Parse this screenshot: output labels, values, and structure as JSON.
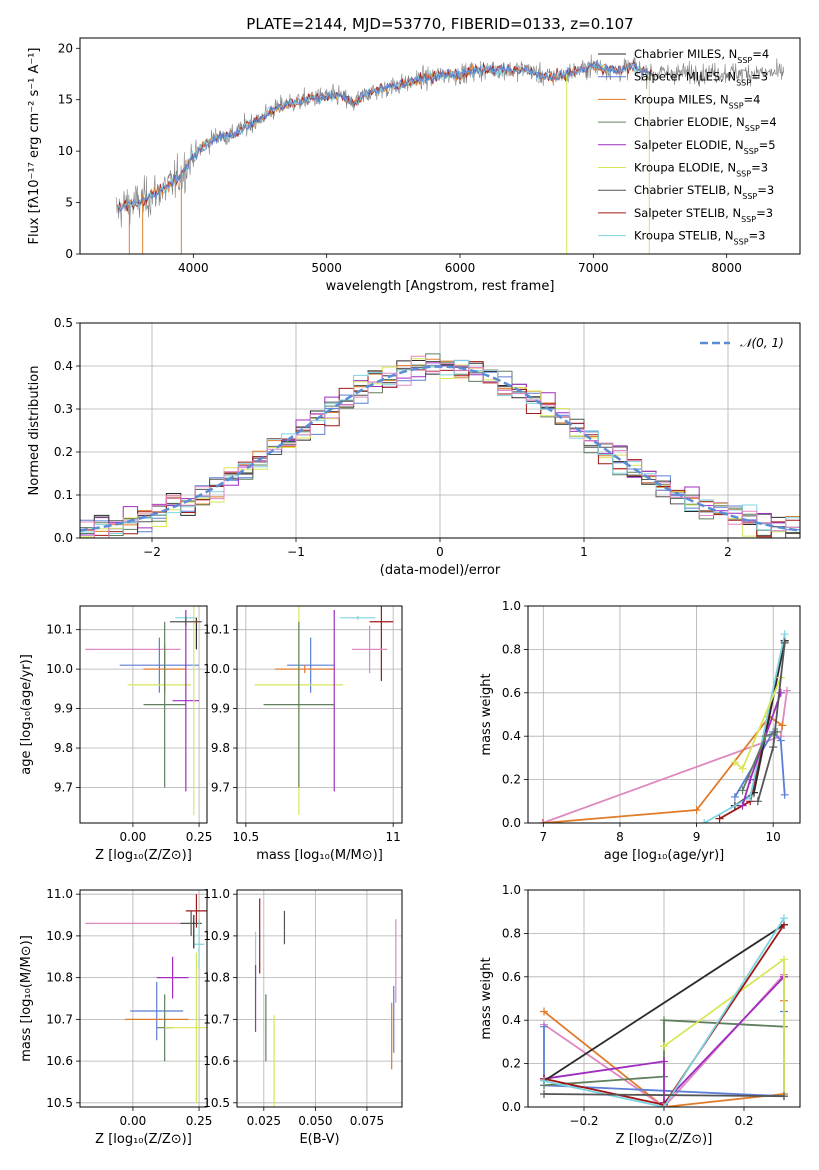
{
  "figure": {
    "title": "PLATE=2144, MJD=53770, FIBERID=0133, z=0.107"
  },
  "colors": {
    "Chabrier MILES": "#5b7fd6",
    "Salpeter MILES": "#2b2b2b",
    "Kroupa MILES": "#e07b2a",
    "Chabrier ELODIE": "#5f7f5f",
    "Salpeter ELODIE": "#a02cc0",
    "Kroupa ELODIE": "#d9e65a",
    "Chabrier STELIB": "#555555",
    "Salpeter STELIB": "#a01818",
    "Kroupa STELIB": "#7fd4e0",
    "pink": "#e088c0",
    "normal": "#5b8dd6",
    "grid": "#b0b0b0"
  },
  "chart_data": [
    {
      "id": "spectrum",
      "type": "line",
      "xlabel": "wavelength [Angstrom, rest frame]",
      "ylabel": "Flux [fλ10⁻¹⁷ erg cm⁻² s⁻¹ A⁻¹]",
      "xlim": [
        3150,
        8550
      ],
      "ylim": [
        0,
        21
      ],
      "xticks": [
        4000,
        5000,
        6000,
        7000,
        8000
      ],
      "yticks": [
        0,
        5,
        10,
        15,
        20
      ],
      "grid": false,
      "legend_position": "top-right",
      "legend": [
        {
          "label": "Chabrier MILES, N",
          "sub": "SSP",
          "suffix": "=4",
          "color_key": "Salpeter MILES"
        },
        {
          "label": "Salpeter MILES, N",
          "sub": "SSP",
          "suffix": "=3",
          "color_key": "Chabrier MILES"
        },
        {
          "label": "Kroupa MILES, N",
          "sub": "SSP",
          "suffix": "=4",
          "color_key": "Kroupa MILES"
        },
        {
          "label": "Chabrier ELODIE, N",
          "sub": "SSP",
          "suffix": "=4",
          "color_key": "Chabrier ELODIE"
        },
        {
          "label": "Salpeter ELODIE, N",
          "sub": "SSP",
          "suffix": "=5",
          "color_key": "Salpeter ELODIE"
        },
        {
          "label": "Kroupa ELODIE, N",
          "sub": "SSP",
          "suffix": "=3",
          "color_key": "Kroupa ELODIE"
        },
        {
          "label": "Chabrier STELIB, N",
          "sub": "SSP",
          "suffix": "=3",
          "color_key": "Chabrier STELIB"
        },
        {
          "label": "Salpeter STELIB, N",
          "sub": "SSP",
          "suffix": "=3",
          "color_key": "Salpeter STELIB"
        },
        {
          "label": "Kroupa STELIB, N",
          "sub": "SSP",
          "suffix": "=3",
          "color_key": "Kroupa STELIB"
        }
      ],
      "continuum": [
        [
          3420,
          4.2
        ],
        [
          3500,
          4.8
        ],
        [
          3600,
          5.0
        ],
        [
          3700,
          5.8
        ],
        [
          3800,
          6.5
        ],
        [
          3900,
          7.5
        ],
        [
          4000,
          9.5
        ],
        [
          4100,
          10.8
        ],
        [
          4200,
          11.5
        ],
        [
          4300,
          11.6
        ],
        [
          4400,
          12.5
        ],
        [
          4500,
          13.2
        ],
        [
          4600,
          14.0
        ],
        [
          4700,
          14.6
        ],
        [
          4800,
          14.8
        ],
        [
          4900,
          15.2
        ],
        [
          5000,
          15.3
        ],
        [
          5100,
          15.4
        ],
        [
          5200,
          14.6
        ],
        [
          5300,
          15.6
        ],
        [
          5400,
          16.0
        ],
        [
          5500,
          16.3
        ],
        [
          5600,
          16.6
        ],
        [
          5700,
          17.0
        ],
        [
          5800,
          17.2
        ],
        [
          5900,
          17.5
        ],
        [
          6000,
          17.4
        ],
        [
          6100,
          17.8
        ],
        [
          6200,
          17.9
        ],
        [
          6300,
          18.0
        ],
        [
          6400,
          17.8
        ],
        [
          6500,
          18.0
        ],
        [
          6600,
          17.4
        ],
        [
          6700,
          17.2
        ],
        [
          6800,
          17.5
        ],
        [
          6900,
          17.9
        ],
        [
          7000,
          18.3
        ],
        [
          7100,
          18.0
        ],
        [
          7200,
          17.8
        ],
        [
          7300,
          18.3
        ],
        [
          7400,
          17.6
        ]
      ],
      "noise_end": 8430,
      "spikes_down": [
        [
          3520,
          0
        ],
        [
          3620,
          0
        ],
        [
          3910,
          0
        ],
        [
          6800,
          0
        ],
        [
          7420,
          0
        ]
      ]
    },
    {
      "id": "residuals",
      "type": "histogram",
      "xlabel": "(data-model)/error",
      "ylabel": "Normed distribution",
      "xlim": [
        -2.5,
        2.5
      ],
      "ylim": [
        0,
        0.5
      ],
      "xticks": [
        -2,
        -1,
        0,
        1,
        2
      ],
      "yticks": [
        0.0,
        0.1,
        0.2,
        0.3,
        0.4,
        0.5
      ],
      "grid": true,
      "legend_position": "top-right",
      "legend": [
        {
          "label": "𝒩(0, 1)",
          "style": "dashed",
          "color_key": "normal"
        }
      ],
      "bins": 50,
      "bin_width": 0.1
    },
    {
      "id": "age-vs-Z",
      "type": "errorbar",
      "xlabel": "Z [log₁₀(Z/Z⊙)]",
      "ylabel": "age  [log₁₀(age/yr)]",
      "xlim": [
        -0.2,
        0.28
      ],
      "ylim": [
        9.61,
        10.16
      ],
      "xticks": [
        0.0,
        0.25
      ],
      "xticklabels": [
        "0.00",
        "0.25"
      ],
      "yticks": [
        9.7,
        9.8,
        9.9,
        10.0,
        10.1
      ],
      "grid": true,
      "points": [
        {
          "c": "Kroupa STELIB",
          "x": 0.2,
          "xe": 0.04,
          "y": 10.13,
          "ye": 0.005
        },
        {
          "c": "Salpeter MILES",
          "x": 0.24,
          "xe": 0.0,
          "y": 10.09,
          "ye": 0.04
        },
        {
          "c": "pink",
          "x": 0.0,
          "xe": 0.18,
          "y": 10.05,
          "ye": 0.0
        },
        {
          "c": "Salpeter STELIB",
          "x": 0.24,
          "xe": 0.0,
          "y": 10.12,
          "ye": 0.005
        },
        {
          "c": "Chabrier MILES",
          "x": 0.1,
          "xe": 0.15,
          "y": 10.01,
          "ye": 0.07
        },
        {
          "c": "Kroupa MILES",
          "x": 0.12,
          "xe": 0.08,
          "y": 10.0,
          "ye": 0.06
        },
        {
          "c": "Kroupa ELODIE",
          "x": 0.1,
          "xe": 0.12,
          "y": 9.96,
          "ye": 0.0
        },
        {
          "c": "Salpeter ELODIE",
          "x": 0.2,
          "xe": 0.05,
          "y": 9.92,
          "ye": 0.23
        },
        {
          "c": "Chabrier ELODIE",
          "x": 0.12,
          "xe": 0.08,
          "y": 9.91,
          "ye": 0.21
        },
        {
          "c": "Kroupa ELODIE",
          "x": 0.23,
          "xe": 0.0,
          "y": 9.9,
          "ye": 0.27
        },
        {
          "c": "Chabrier STELIB",
          "x": 0.2,
          "xe": 0.06,
          "y": 10.12,
          "ye": 0.01
        }
      ]
    },
    {
      "id": "age-vs-mass",
      "type": "errorbar",
      "xlabel": "mass [log₁₀(M/M⊙)]",
      "ylabel": "",
      "xlim": [
        10.47,
        11.03
      ],
      "ylim": [
        9.61,
        10.16
      ],
      "xticks": [
        10.5,
        11.0
      ],
      "yticks": [
        9.7,
        9.8,
        9.9,
        10.0,
        10.1
      ],
      "grid": true,
      "points": [
        {
          "c": "Kroupa STELIB",
          "x": 10.88,
          "xe": 0.06,
          "y": 10.13,
          "ye": 0.005
        },
        {
          "c": "Salpeter STELIB",
          "x": 10.96,
          "xe": 0.04,
          "y": 10.12,
          "ye": 0.15
        },
        {
          "c": "pink",
          "x": 10.92,
          "xe": 0.06,
          "y": 10.05,
          "ye": 0.06
        },
        {
          "c": "Chabrier MILES",
          "x": 10.72,
          "xe": 0.08,
          "y": 10.01,
          "ye": 0.07
        },
        {
          "c": "Kroupa MILES",
          "x": 10.7,
          "xe": 0.1,
          "y": 10.0,
          "ye": 0.01
        },
        {
          "c": "Kroupa ELODIE",
          "x": 10.68,
          "xe": 0.15,
          "y": 9.96,
          "ye": 0.33
        },
        {
          "c": "Salpeter ELODIE",
          "x": 10.8,
          "xe": 0.0,
          "y": 9.92,
          "ye": 0.23
        },
        {
          "c": "Chabrier ELODIE",
          "x": 10.68,
          "xe": 0.12,
          "y": 9.91,
          "ye": 0.21
        }
      ]
    },
    {
      "id": "weight-vs-age",
      "type": "line",
      "xlabel": "age  [log₁₀(age/yr)]",
      "ylabel": "mass weight",
      "xlim": [
        6.8,
        10.35
      ],
      "ylim": [
        0.0,
        1.0
      ],
      "xticks": [
        7,
        8,
        9,
        10
      ],
      "yticks": [
        0.0,
        0.2,
        0.4,
        0.6,
        0.8,
        1.0
      ],
      "grid": true,
      "series": [
        {
          "c": "pink",
          "pts": [
            [
              6.99,
              0.0
            ],
            [
              10.1,
              0.4
            ],
            [
              10.18,
              0.61
            ]
          ]
        },
        {
          "c": "Kroupa MILES",
          "pts": [
            [
              7.0,
              0.0
            ],
            [
              9.0,
              0.06
            ],
            [
              9.95,
              0.49
            ],
            [
              10.12,
              0.45
            ]
          ]
        },
        {
          "c": "Chabrier MILES",
          "pts": [
            [
              9.5,
              0.12
            ],
            [
              10.0,
              0.42
            ],
            [
              10.1,
              0.38
            ],
            [
              10.15,
              0.13
            ]
          ]
        },
        {
          "c": "Salpeter STELIB",
          "pts": [
            [
              9.3,
              0.02
            ],
            [
              9.7,
              0.1
            ],
            [
              10.15,
              0.84
            ]
          ]
        },
        {
          "c": "Salpeter MILES",
          "pts": [
            [
              9.5,
              0.08
            ],
            [
              9.75,
              0.14
            ],
            [
              10.15,
              0.84
            ]
          ]
        },
        {
          "c": "Kroupa STELIB",
          "pts": [
            [
              9.1,
              0.0
            ],
            [
              9.7,
              0.12
            ],
            [
              10.15,
              0.87
            ]
          ]
        },
        {
          "c": "Kroupa ELODIE",
          "pts": [
            [
              9.5,
              0.28
            ],
            [
              9.6,
              0.25
            ],
            [
              10.1,
              0.67
            ]
          ]
        },
        {
          "c": "Salpeter ELODIE",
          "pts": [
            [
              9.6,
              0.08
            ],
            [
              9.7,
              0.2
            ],
            [
              10.1,
              0.6
            ]
          ]
        },
        {
          "c": "Chabrier ELODIE",
          "pts": [
            [
              9.6,
              0.15
            ],
            [
              9.9,
              0.4
            ],
            [
              10.05,
              0.42
            ]
          ]
        },
        {
          "c": "Chabrier STELIB",
          "pts": [
            [
              9.8,
              0.1
            ],
            [
              10.0,
              0.35
            ],
            [
              10.15,
              0.83
            ]
          ]
        }
      ]
    },
    {
      "id": "mass-vs-Z",
      "type": "errorbar",
      "xlabel": "Z [log₁₀(Z/Z⊙)]",
      "ylabel": "mass [log₁₀(M/M⊙)]",
      "xlim": [
        -0.2,
        0.28
      ],
      "ylim": [
        10.49,
        11.01
      ],
      "xticks": [
        0.0,
        0.25
      ],
      "xticklabels": [
        "0.00",
        "0.25"
      ],
      "yticks": [
        10.5,
        10.6,
        10.7,
        10.8,
        10.9,
        11.0
      ],
      "grid": true,
      "points": [
        {
          "c": "Salpeter STELIB",
          "x": 0.24,
          "xe": 0.04,
          "y": 10.96,
          "ye": 0.04
        },
        {
          "c": "pink",
          "x": 0.0,
          "xe": 0.18,
          "y": 10.93,
          "ye": 0.0
        },
        {
          "c": "Chabrier STELIB",
          "x": 0.22,
          "xe": 0.04,
          "y": 10.93,
          "ye": 0.03
        },
        {
          "c": "Kroupa STELIB",
          "x": 0.25,
          "xe": 0.02,
          "y": 10.88,
          "ye": 0.06
        },
        {
          "c": "Salpeter ELODIE",
          "x": 0.15,
          "xe": 0.06,
          "y": 10.8,
          "ye": 0.05
        },
        {
          "c": "Chabrier MILES",
          "x": 0.09,
          "xe": 0.1,
          "y": 10.72,
          "ye": 0.07
        },
        {
          "c": "Kroupa MILES",
          "x": 0.09,
          "xe": 0.12,
          "y": 10.7,
          "ye": 0.0
        },
        {
          "c": "Chabrier ELODIE",
          "x": 0.12,
          "xe": 0.03,
          "y": 10.68,
          "ye": 0.08
        },
        {
          "c": "Kroupa ELODIE",
          "x": 0.24,
          "xe": 0.12,
          "y": 10.68,
          "ye": 0.18
        },
        {
          "c": "Salpeter MILES",
          "x": 0.23,
          "xe": 0.0,
          "y": 10.91,
          "ye": 0.04
        }
      ]
    },
    {
      "id": "mass-vs-ebv",
      "type": "errorbar",
      "xlabel": "E(B-V)",
      "ylabel": "",
      "xlim": [
        0.012,
        0.092
      ],
      "ylim": [
        10.49,
        11.01
      ],
      "xticks": [
        0.025,
        0.05,
        0.075
      ],
      "xticklabels": [
        "0.025",
        "0.050",
        "0.075"
      ],
      "yticks": [
        10.5,
        10.6,
        10.7,
        10.8,
        10.9,
        11.0
      ],
      "grid": true,
      "points": [
        {
          "c": "Salpeter STELIB",
          "x": 0.023,
          "xe": 0.0,
          "y": 10.9,
          "ye": 0.09
        },
        {
          "c": "Chabrier STELIB",
          "x": 0.035,
          "xe": 0.0,
          "y": 10.92,
          "ye": 0.04
        },
        {
          "c": "Kroupa STELIB",
          "x": 0.021,
          "xe": 0.0,
          "y": 10.84,
          "ye": 0.07
        },
        {
          "c": "pink",
          "x": 0.089,
          "xe": 0.0,
          "y": 10.84,
          "ye": 0.1
        },
        {
          "c": "Salpeter ELODIE",
          "x": 0.021,
          "xe": 0.0,
          "y": 10.75,
          "ye": 0.08
        },
        {
          "c": "Chabrier ELODIE",
          "x": 0.026,
          "xe": 0.0,
          "y": 10.68,
          "ye": 0.08
        },
        {
          "c": "Kroupa ELODIE",
          "x": 0.03,
          "xe": 0.0,
          "y": 10.6,
          "ye": 0.11
        },
        {
          "c": "Kroupa MILES",
          "x": 0.087,
          "xe": 0.0,
          "y": 10.66,
          "ye": 0.08
        },
        {
          "c": "Chabrier MILES",
          "x": 0.088,
          "xe": 0.0,
          "y": 10.7,
          "ye": 0.08
        }
      ]
    },
    {
      "id": "weight-vs-Z",
      "type": "line",
      "xlabel": "Z [log₁₀(Z/Z⊙)]",
      "ylabel": "mass weight",
      "xlim": [
        -0.34,
        0.34
      ],
      "ylim": [
        0.0,
        1.0
      ],
      "xticks": [
        -0.2,
        0.0,
        0.2
      ],
      "xticklabels": [
        "−0.2",
        "0.0",
        "0.2"
      ],
      "yticks": [
        0.0,
        0.2,
        0.4,
        0.6,
        0.8,
        1.0
      ],
      "grid": true,
      "series": [
        {
          "c": "Kroupa MILES",
          "pts": [
            [
              -0.3,
              0.44
            ],
            [
              0.0,
              0.0
            ],
            [
              0.3,
              0.06
            ],
            [
              0.3,
              0.49
            ]
          ]
        },
        {
          "c": "pink",
          "pts": [
            [
              -0.3,
              0.38
            ],
            [
              0.0,
              0.0
            ],
            [
              0.3,
              0.61
            ]
          ]
        },
        {
          "c": "Chabrier MILES",
          "pts": [
            [
              -0.3,
              0.37
            ],
            [
              -0.3,
              0.1
            ],
            [
              0.3,
              0.05
            ],
            [
              0.3,
              0.44
            ]
          ]
        },
        {
          "c": "Chabrier ELODIE",
          "pts": [
            [
              -0.3,
              0.1
            ],
            [
              0.0,
              0.14
            ],
            [
              0.0,
              0.4
            ],
            [
              0.3,
              0.37
            ],
            [
              0.3,
              0.6
            ]
          ]
        },
        {
          "c": "Salpeter ELODIE",
          "pts": [
            [
              -0.3,
              0.13
            ],
            [
              0.0,
              0.21
            ],
            [
              0.0,
              0.02
            ],
            [
              0.3,
              0.6
            ]
          ]
        },
        {
          "c": "Kroupa ELODIE",
          "pts": [
            [
              0.0,
              0.28
            ],
            [
              0.3,
              0.68
            ],
            [
              0.3,
              0.05
            ]
          ]
        },
        {
          "c": "Salpeter MILES",
          "pts": [
            [
              -0.3,
              0.12
            ],
            [
              0.3,
              0.84
            ]
          ]
        },
        {
          "c": "Salpeter STELIB",
          "pts": [
            [
              -0.3,
              0.13
            ],
            [
              0.0,
              0.01
            ],
            [
              0.3,
              0.84
            ]
          ]
        },
        {
          "c": "Kroupa STELIB",
          "pts": [
            [
              -0.3,
              0.12
            ],
            [
              0.0,
              0.0
            ],
            [
              0.3,
              0.87
            ]
          ]
        },
        {
          "c": "Chabrier STELIB",
          "pts": [
            [
              -0.3,
              0.06
            ],
            [
              0.3,
              0.05
            ]
          ]
        }
      ]
    }
  ]
}
